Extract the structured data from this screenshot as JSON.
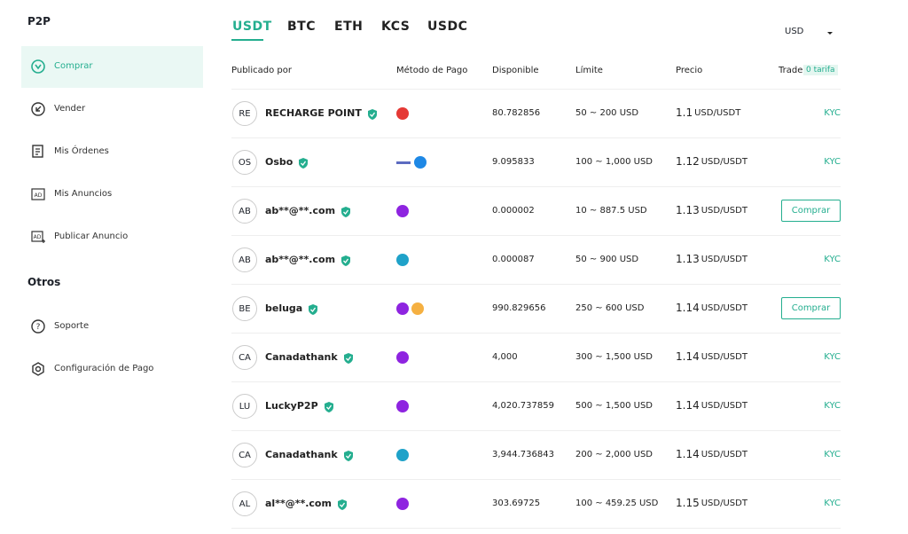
{
  "sidebar": {
    "title": "P2P",
    "items": [
      "Comprar",
      "Vender",
      "Mis Órdenes",
      "Mis Anuncios",
      "Publicar Anuncio"
    ],
    "section": "Otros",
    "other_items": [
      "Soporte",
      "Configuración de Pago"
    ]
  },
  "tabs": [
    "USDT",
    "BTC",
    "ETH",
    "KCS",
    "USDC"
  ],
  "currency": "USD",
  "table": {
    "headers": [
      "Publicado por",
      "Método de Pago",
      "Disponible",
      "Límite",
      "Precio",
      "Trade"
    ],
    "fee_badge": "0 tarifa",
    "rows": [
      {
        "avatar": "RE",
        "name": "RECHARGE POINT",
        "available": "80.782856",
        "limit": "50 ~ 200 USD",
        "price": "1.1",
        "unit": "USD/USDT",
        "action": "KYC"
      },
      {
        "avatar": "OS",
        "name": "Osbo",
        "available": "9.095833",
        "limit": "100 ~ 1,000 USD",
        "price": "1.12",
        "unit": "USD/USDT",
        "action": "KYC"
      },
      {
        "avatar": "AB",
        "name": "ab**@**.com",
        "available": "0.000002",
        "limit": "10 ~ 887.5 USD",
        "price": "1.13",
        "unit": "USD/USDT",
        "action": "Comprar"
      },
      {
        "avatar": "AB",
        "name": "ab**@**.com",
        "available": "0.000087",
        "limit": "50 ~ 900 USD",
        "price": "1.13",
        "unit": "USD/USDT",
        "action": "KYC"
      },
      {
        "avatar": "BE",
        "name": "beluga",
        "available": "990.829656",
        "limit": "250 ~ 600 USD",
        "price": "1.14",
        "unit": "USD/USDT",
        "action": "Comprar"
      },
      {
        "avatar": "CA",
        "name": "Canadathank",
        "available": "4,000",
        "limit": "300 ~ 1,500 USD",
        "price": "1.14",
        "unit": "USD/USDT",
        "action": "KYC"
      },
      {
        "avatar": "LU",
        "name": "LuckyP2P",
        "available": "4,020.737859",
        "limit": "500 ~ 1,500 USD",
        "price": "1.14",
        "unit": "USD/USDT",
        "action": "KYC"
      },
      {
        "avatar": "CA",
        "name": "Canadathank",
        "available": "3,944.736843",
        "limit": "200 ~ 2,000 USD",
        "price": "1.14",
        "unit": "USD/USDT",
        "action": "KYC"
      },
      {
        "avatar": "AL",
        "name": "al**@**.com",
        "available": "303.69725",
        "limit": "100 ~ 459.25 USD",
        "price": "1.15",
        "unit": "USD/USDT",
        "action": "KYC"
      }
    ]
  }
}
